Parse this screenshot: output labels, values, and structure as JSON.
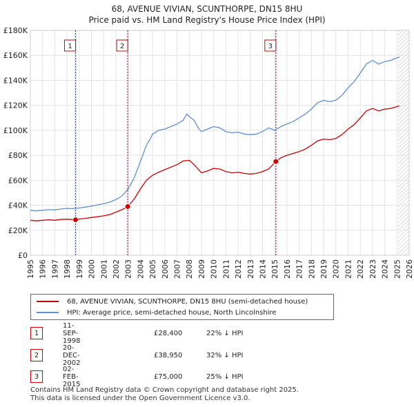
{
  "title_line1": "68, AVENUE VIVIAN, SCUNTHORPE, DN15 8HU",
  "title_line2": "Price paid vs. HM Land Registry's House Price Index (HPI)",
  "chart_data": {
    "type": "line",
    "title": "Price paid vs. HM Land Registry's House Price Index (HPI)",
    "xlim": [
      1995,
      2026
    ],
    "ylim": [
      0,
      180000
    ],
    "x_ticks": [
      1995,
      1996,
      1997,
      1998,
      1999,
      2000,
      2001,
      2002,
      2003,
      2004,
      2005,
      2006,
      2007,
      2008,
      2009,
      2010,
      2011,
      2012,
      2013,
      2014,
      2015,
      2016,
      2017,
      2018,
      2019,
      2020,
      2021,
      2022,
      2023,
      2024,
      2025,
      2026
    ],
    "y_ticks": [
      0,
      20000,
      40000,
      60000,
      80000,
      100000,
      120000,
      140000,
      160000,
      180000
    ],
    "y_tick_labels": [
      "£0",
      "£20K",
      "£40K",
      "£60K",
      "£80K",
      "£100K",
      "£120K",
      "£140K",
      "£160K",
      "£180K"
    ],
    "grid": true,
    "future_hatch_from": 2025.1,
    "series": [
      {
        "name": "HPI: Average price, semi-detached house, North Lincolnshire",
        "color": "#5b8fcf",
        "points": [
          [
            1995.0,
            36000
          ],
          [
            1995.5,
            35500
          ],
          [
            1996.0,
            36000
          ],
          [
            1996.5,
            36500
          ],
          [
            1997.0,
            36300
          ],
          [
            1997.5,
            37000
          ],
          [
            1998.0,
            37500
          ],
          [
            1998.5,
            37300
          ],
          [
            1999.0,
            37800
          ],
          [
            1999.5,
            38500
          ],
          [
            2000.0,
            39300
          ],
          [
            2000.5,
            40300
          ],
          [
            2001.0,
            41300
          ],
          [
            2001.5,
            42500
          ],
          [
            2002.0,
            44500
          ],
          [
            2002.5,
            47500
          ],
          [
            2003.0,
            53000
          ],
          [
            2003.5,
            62000
          ],
          [
            2004.0,
            75000
          ],
          [
            2004.5,
            88000
          ],
          [
            2004.8,
            93000
          ],
          [
            2005.0,
            97000
          ],
          [
            2005.5,
            100000
          ],
          [
            2006.0,
            101000
          ],
          [
            2006.5,
            103000
          ],
          [
            2007.0,
            105000
          ],
          [
            2007.5,
            108000
          ],
          [
            2007.8,
            113000
          ],
          [
            2008.0,
            111000
          ],
          [
            2008.4,
            108000
          ],
          [
            2008.8,
            101000
          ],
          [
            2009.0,
            99000
          ],
          [
            2009.5,
            101000
          ],
          [
            2010.0,
            103000
          ],
          [
            2010.5,
            102000
          ],
          [
            2011.0,
            99000
          ],
          [
            2011.5,
            98000
          ],
          [
            2012.0,
            98500
          ],
          [
            2012.5,
            97000
          ],
          [
            2013.0,
            96500
          ],
          [
            2013.5,
            97000
          ],
          [
            2014.0,
            99000
          ],
          [
            2014.5,
            102000
          ],
          [
            2015.0,
            100000
          ],
          [
            2015.5,
            103000
          ],
          [
            2016.0,
            105000
          ],
          [
            2016.5,
            107000
          ],
          [
            2017.0,
            110000
          ],
          [
            2017.5,
            113000
          ],
          [
            2018.0,
            117000
          ],
          [
            2018.5,
            122000
          ],
          [
            2019.0,
            124000
          ],
          [
            2019.5,
            123000
          ],
          [
            2020.0,
            124000
          ],
          [
            2020.5,
            128000
          ],
          [
            2021.0,
            134000
          ],
          [
            2021.5,
            139000
          ],
          [
            2022.0,
            146000
          ],
          [
            2022.5,
            153000
          ],
          [
            2023.0,
            156000
          ],
          [
            2023.5,
            153000
          ],
          [
            2024.0,
            155000
          ],
          [
            2024.5,
            156000
          ],
          [
            2025.0,
            158000
          ],
          [
            2025.2,
            158500
          ]
        ]
      },
      {
        "name": "68, AVENUE VIVIAN, SCUNTHORPE, DN15 8HU (semi-detached house)",
        "color": "#cc0000",
        "points": [
          [
            1995.0,
            28000
          ],
          [
            1995.5,
            27500
          ],
          [
            1996.0,
            28000
          ],
          [
            1996.5,
            28300
          ],
          [
            1997.0,
            28000
          ],
          [
            1997.5,
            28600
          ],
          [
            1998.0,
            28900
          ],
          [
            1998.7,
            28400
          ],
          [
            1999.0,
            29000
          ],
          [
            1999.5,
            29500
          ],
          [
            2000.0,
            30200
          ],
          [
            2000.5,
            30800
          ],
          [
            2001.0,
            31500
          ],
          [
            2001.5,
            32500
          ],
          [
            2002.0,
            34500
          ],
          [
            2002.5,
            36500
          ],
          [
            2002.97,
            38950
          ],
          [
            2003.5,
            45000
          ],
          [
            2004.0,
            53000
          ],
          [
            2004.5,
            60000
          ],
          [
            2005.0,
            64000
          ],
          [
            2005.5,
            66500
          ],
          [
            2006.0,
            68500
          ],
          [
            2006.5,
            70500
          ],
          [
            2007.0,
            72500
          ],
          [
            2007.5,
            75500
          ],
          [
            2008.0,
            76000
          ],
          [
            2008.4,
            72500
          ],
          [
            2009.0,
            66000
          ],
          [
            2009.5,
            67500
          ],
          [
            2010.0,
            69500
          ],
          [
            2010.5,
            69000
          ],
          [
            2011.0,
            67000
          ],
          [
            2011.5,
            66000
          ],
          [
            2012.0,
            66500
          ],
          [
            2012.5,
            65500
          ],
          [
            2013.0,
            65000
          ],
          [
            2013.5,
            65500
          ],
          [
            2014.0,
            67000
          ],
          [
            2014.5,
            69000
          ],
          [
            2015.09,
            75000
          ],
          [
            2015.5,
            78000
          ],
          [
            2016.0,
            80000
          ],
          [
            2016.5,
            81500
          ],
          [
            2017.0,
            83000
          ],
          [
            2017.5,
            85000
          ],
          [
            2018.0,
            88000
          ],
          [
            2018.5,
            91500
          ],
          [
            2019.0,
            93000
          ],
          [
            2019.5,
            92500
          ],
          [
            2020.0,
            93500
          ],
          [
            2020.5,
            96500
          ],
          [
            2021.0,
            101000
          ],
          [
            2021.5,
            104500
          ],
          [
            2022.0,
            110000
          ],
          [
            2022.5,
            115500
          ],
          [
            2023.0,
            117500
          ],
          [
            2023.5,
            115500
          ],
          [
            2024.0,
            117000
          ],
          [
            2024.5,
            117500
          ],
          [
            2025.0,
            119000
          ],
          [
            2025.2,
            119500
          ]
        ]
      }
    ],
    "transactions": [
      {
        "marker": "1",
        "x": 1998.7,
        "price": 28400
      },
      {
        "marker": "2",
        "x": 2002.97,
        "price": 38950
      },
      {
        "marker": "3",
        "x": 2015.09,
        "price": 75000
      }
    ]
  },
  "legend": {
    "property_label": "68, AVENUE VIVIAN, SCUNTHORPE, DN15 8HU (semi-detached house)",
    "hpi_label": "HPI: Average price, semi-detached house, North Lincolnshire",
    "property_color": "#cc0000",
    "hpi_color": "#5b8fcf"
  },
  "transactions_table": [
    {
      "num": "1",
      "date": "11-SEP-1998",
      "price": "£28,400",
      "hpi": "22% ↓ HPI"
    },
    {
      "num": "2",
      "date": "20-DEC-2002",
      "price": "£38,950",
      "hpi": "32% ↓ HPI"
    },
    {
      "num": "3",
      "date": "02-FEB-2015",
      "price": "£75,000",
      "hpi": "25% ↓ HPI"
    }
  ],
  "footer": {
    "line1": "Contains HM Land Registry data © Crown copyright and database right 2025.",
    "line2": "This data is licensed under the Open Government Licence v3.0."
  }
}
